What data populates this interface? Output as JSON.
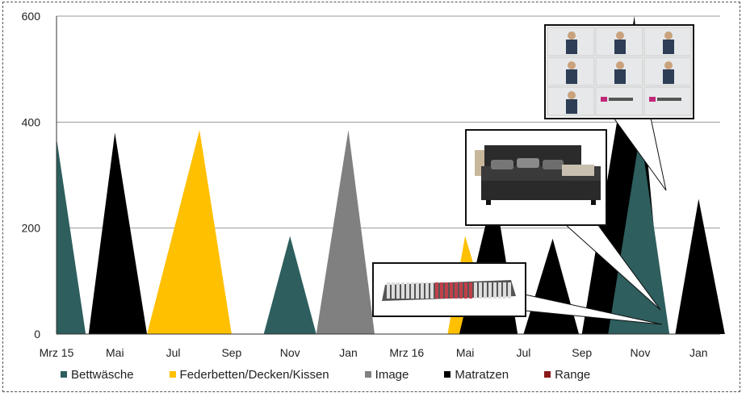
{
  "chart_data": {
    "type": "area",
    "title": "",
    "xlabel": "",
    "ylabel": "",
    "ylim": [
      0,
      600
    ],
    "yticks": [
      "0",
      "200",
      "400",
      "600"
    ],
    "xticks": [
      "Mrz 15",
      "Mai",
      "Jul",
      "Sep",
      "Nov",
      "Jan",
      "Mrz 16",
      "Mai",
      "Jul",
      "Sep",
      "Nov",
      "Jan"
    ],
    "grid": true,
    "legend_position": "bottom",
    "series": [
      {
        "name": "Bettwäsche",
        "color": "#2e5e5e"
      },
      {
        "name": "Federbetten/Decken/Kissen",
        "color": "#ffc000"
      },
      {
        "name": "Image",
        "color": "#808080"
      },
      {
        "name": "Matratzen",
        "color": "#000000"
      },
      {
        "name": "Range",
        "color": "#8b1a1a"
      }
    ],
    "flights": [
      {
        "series": "Bettwäsche",
        "start": 0,
        "peak": 0,
        "end": 0.5,
        "value": 370
      },
      {
        "series": "Matratzen",
        "start": 0.55,
        "peak": 1.0,
        "end": 1.55,
        "value": 380
      },
      {
        "series": "Federbetten/Decken/Kissen",
        "start": 1.55,
        "peak": 2.45,
        "end": 3.0,
        "value": 385
      },
      {
        "series": "Bettwäsche",
        "start": 3.55,
        "peak": 4.0,
        "end": 4.45,
        "value": 185
      },
      {
        "series": "Image",
        "start": 4.45,
        "peak": 5.0,
        "end": 5.45,
        "value": 385
      },
      {
        "series": "Federbetten/Decken/Kissen",
        "start": 6.7,
        "peak": 7.0,
        "end": 7.5,
        "value": 185
      },
      {
        "series": "Matratzen",
        "start": 6.9,
        "peak": 7.5,
        "end": 7.9,
        "value": 275
      },
      {
        "series": "Matratzen",
        "start": 8.0,
        "peak": 8.5,
        "end": 8.95,
        "value": 180
      },
      {
        "series": "Matratzen",
        "start": 9.0,
        "peak": 9.9,
        "end": 10.4,
        "value": 600
      },
      {
        "series": "Bettwäsche",
        "start": 9.45,
        "peak": 10.0,
        "end": 10.5,
        "value": 380
      },
      {
        "series": "Matratzen",
        "start": 10.6,
        "peak": 11.0,
        "end": 11.45,
        "value": 255
      }
    ]
  }
}
